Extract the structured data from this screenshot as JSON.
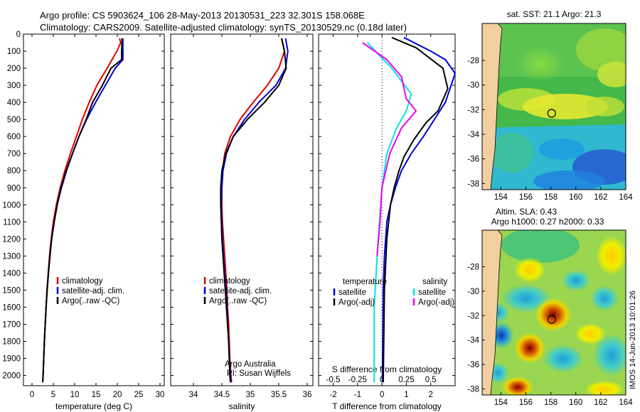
{
  "header": {
    "line1": "Argo profile: CS 5903624_106 28-May-2013 20130531_223 32.301S 158.068E",
    "line2": "Climatology: CARS2009. Satellite-adjusted climatology: synTS_20130529.nc (0.18d later)"
  },
  "colors": {
    "climatology": "#dd0000",
    "satellite": "#0000dd",
    "argo": "#000000",
    "s_satellite": "#00e5e5",
    "s_argo": "#ee00ee",
    "land": "#f2cfa0"
  },
  "chart_data": [
    {
      "type": "line",
      "xlabel": "temperature (deg C)",
      "ylabel": "",
      "xlim": [
        -2,
        31
      ],
      "ylim": [
        2060,
        0
      ],
      "xticks": [
        0,
        5,
        10,
        15,
        20,
        25,
        30
      ],
      "yticks": [
        0,
        100,
        200,
        300,
        400,
        500,
        600,
        700,
        800,
        900,
        1000,
        1100,
        1200,
        1300,
        1400,
        1500,
        1600,
        1700,
        1800,
        1900,
        2000
      ],
      "legend": [
        "climatology",
        "satellite-adj. clim.",
        "Argo(..raw -QC)"
      ],
      "series": [
        {
          "name": "climatology",
          "color": "#dd0000",
          "points": [
            [
              20.5,
              25
            ],
            [
              20.8,
              50
            ],
            [
              19.9,
              100
            ],
            [
              17.6,
              200
            ],
            [
              15.2,
              300
            ],
            [
              13.4,
              400
            ],
            [
              11.8,
              500
            ],
            [
              10.4,
              600
            ],
            [
              9.0,
              700
            ],
            [
              7.7,
              800
            ],
            [
              6.6,
              900
            ],
            [
              5.7,
              1000
            ],
            [
              5.0,
              1100
            ],
            [
              4.5,
              1200
            ],
            [
              4.1,
              1300
            ],
            [
              3.8,
              1400
            ],
            [
              3.5,
              1500
            ],
            [
              3.3,
              1600
            ],
            [
              3.1,
              1700
            ],
            [
              2.9,
              1800
            ],
            [
              2.75,
              1900
            ],
            [
              2.6,
              2000
            ],
            [
              2.5,
              2040
            ]
          ]
        },
        {
          "name": "satellite-adj. clim.",
          "color": "#0000dd",
          "points": [
            [
              21.3,
              25
            ],
            [
              21.3,
              50
            ],
            [
              21.3,
              100
            ],
            [
              21.3,
              150
            ],
            [
              19.5,
              200
            ],
            [
              17.2,
              300
            ],
            [
              14.9,
              400
            ],
            [
              12.8,
              500
            ],
            [
              11.0,
              600
            ],
            [
              9.5,
              700
            ],
            [
              8.1,
              800
            ],
            [
              6.9,
              900
            ],
            [
              5.9,
              1000
            ],
            [
              5.2,
              1100
            ],
            [
              4.6,
              1200
            ],
            [
              4.2,
              1300
            ],
            [
              3.85,
              1400
            ],
            [
              3.55,
              1500
            ],
            [
              3.3,
              1600
            ],
            [
              3.1,
              1700
            ],
            [
              2.9,
              1800
            ],
            [
              2.75,
              1900
            ],
            [
              2.6,
              2000
            ],
            [
              2.5,
              2040
            ]
          ]
        },
        {
          "name": "Argo(..raw -QC)",
          "color": "#000000",
          "points": [
            [
              21.1,
              25
            ],
            [
              21.1,
              50
            ],
            [
              21.0,
              100
            ],
            [
              21.0,
              150
            ],
            [
              18.5,
              200
            ],
            [
              16.5,
              300
            ],
            [
              14.2,
              400
            ],
            [
              12.7,
              500
            ],
            [
              11.0,
              600
            ],
            [
              9.5,
              700
            ],
            [
              8.0,
              800
            ],
            [
              6.8,
              900
            ],
            [
              5.9,
              1000
            ],
            [
              5.2,
              1100
            ],
            [
              4.6,
              1200
            ],
            [
              4.2,
              1300
            ],
            [
              3.85,
              1400
            ],
            [
              3.55,
              1500
            ],
            [
              3.3,
              1600
            ],
            [
              3.1,
              1700
            ],
            [
              2.9,
              1800
            ],
            [
              2.75,
              1900
            ],
            [
              2.6,
              2000
            ],
            [
              2.5,
              2040
            ]
          ]
        }
      ]
    },
    {
      "type": "line",
      "xlabel": "salinity",
      "ylabel": "",
      "xlim": [
        33.6,
        36.1
      ],
      "ylim": [
        2060,
        0
      ],
      "xticks": [
        34,
        34.5,
        35,
        35.5,
        36
      ],
      "legend": [
        "climatology",
        "satellite-adj. clim.",
        "Argo(..raw -QC)"
      ],
      "annotation": [
        "Argo Australia",
        "PI: Susan Wijffels"
      ],
      "series": [
        {
          "name": "climatology",
          "color": "#dd0000",
          "points": [
            [
              35.55,
              25
            ],
            [
              35.6,
              100
            ],
            [
              35.5,
              200
            ],
            [
              35.3,
              300
            ],
            [
              35.05,
              400
            ],
            [
              34.82,
              500
            ],
            [
              34.65,
              600
            ],
            [
              34.55,
              700
            ],
            [
              34.51,
              800
            ],
            [
              34.5,
              900
            ],
            [
              34.5,
              1000
            ],
            [
              34.51,
              1100
            ],
            [
              34.53,
              1200
            ],
            [
              34.55,
              1300
            ],
            [
              34.57,
              1400
            ],
            [
              34.59,
              1500
            ],
            [
              34.6,
              1600
            ],
            [
              34.62,
              1700
            ],
            [
              34.63,
              1800
            ],
            [
              34.64,
              1900
            ],
            [
              34.66,
              2000
            ],
            [
              34.67,
              2040
            ]
          ]
        },
        {
          "name": "satellite-adj. clim.",
          "color": "#0000dd",
          "points": [
            [
              35.62,
              25
            ],
            [
              35.66,
              100
            ],
            [
              35.62,
              200
            ],
            [
              35.45,
              300
            ],
            [
              35.15,
              400
            ],
            [
              34.9,
              500
            ],
            [
              34.7,
              600
            ],
            [
              34.58,
              700
            ],
            [
              34.52,
              800
            ],
            [
              34.5,
              900
            ],
            [
              34.49,
              1000
            ],
            [
              34.5,
              1100
            ],
            [
              34.51,
              1200
            ],
            [
              34.53,
              1300
            ],
            [
              34.55,
              1400
            ],
            [
              34.57,
              1500
            ],
            [
              34.59,
              1600
            ],
            [
              34.6,
              1700
            ],
            [
              34.62,
              1800
            ],
            [
              34.63,
              1900
            ],
            [
              34.65,
              2000
            ],
            [
              34.66,
              2040
            ]
          ]
        },
        {
          "name": "Argo(..raw -QC)",
          "color": "#000000",
          "points": [
            [
              35.55,
              25
            ],
            [
              35.6,
              100
            ],
            [
              35.63,
              200
            ],
            [
              35.5,
              300
            ],
            [
              35.25,
              400
            ],
            [
              34.95,
              500
            ],
            [
              34.7,
              600
            ],
            [
              34.57,
              700
            ],
            [
              34.5,
              800
            ],
            [
              34.48,
              900
            ],
            [
              34.48,
              1000
            ],
            [
              34.49,
              1100
            ],
            [
              34.5,
              1200
            ],
            [
              34.52,
              1300
            ],
            [
              34.54,
              1400
            ],
            [
              34.56,
              1500
            ],
            [
              34.58,
              1600
            ],
            [
              34.6,
              1700
            ],
            [
              34.62,
              1800
            ],
            [
              34.63,
              1900
            ],
            [
              34.64,
              2000
            ],
            [
              34.65,
              2040
            ]
          ]
        }
      ]
    },
    {
      "type": "line",
      "xlabel": "T difference from climatology",
      "xlabel2": "S difference from climatology",
      "xlim": [
        -2.6,
        3.0
      ],
      "ylim": [
        2060,
        0
      ],
      "xticks": [
        -2,
        -1,
        0,
        1,
        2
      ],
      "xticks2": [
        {
          "value": -0.5,
          "label": "-0.5"
        },
        {
          "value": -0.25,
          "label": "-0.25"
        },
        {
          "value": 0,
          "label": "0"
        },
        {
          "value": 0.25,
          "label": "0.25"
        },
        {
          "value": 0.5,
          "label": "0.5"
        }
      ],
      "s_scale": 4,
      "legend_headers": [
        "temperature",
        "salinity"
      ],
      "legend": [
        "satellite",
        "Argo(-adj)",
        "satellite",
        "Argo(-adj)"
      ],
      "series": [
        {
          "name": "temperature satellite",
          "color": "#0000dd",
          "points": [
            [
              0.9,
              20
            ],
            [
              2.0,
              100
            ],
            [
              2.6,
              150
            ],
            [
              3.0,
              230
            ],
            [
              2.6,
              400
            ],
            [
              1.7,
              600
            ],
            [
              1.2,
              700
            ],
            [
              0.8,
              800
            ],
            [
              0.55,
              900
            ],
            [
              0.35,
              1000
            ],
            [
              0.2,
              1100
            ],
            [
              0.1,
              1300
            ],
            [
              0.05,
              1500
            ],
            [
              0.02,
              2040
            ]
          ]
        },
        {
          "name": "temperature Argo(-adj)",
          "color": "#000000",
          "points": [
            [
              0.4,
              20
            ],
            [
              1.4,
              80
            ],
            [
              2.5,
              200
            ],
            [
              2.7,
              320
            ],
            [
              2.3,
              450
            ],
            [
              1.8,
              520
            ],
            [
              1.3,
              620
            ],
            [
              0.9,
              720
            ],
            [
              0.7,
              800
            ],
            [
              0.5,
              900
            ],
            [
              0.35,
              1000
            ],
            [
              0.2,
              1200
            ],
            [
              0.1,
              1500
            ],
            [
              0.05,
              2040
            ]
          ]
        },
        {
          "name": "salinity satellite",
          "color": "#00e5e5",
          "points": [
            [
              -0.15,
              50
            ],
            [
              0.1,
              200
            ],
            [
              0.3,
              350
            ],
            [
              0.25,
              450
            ],
            [
              0.15,
              550
            ],
            [
              0.05,
              700
            ],
            [
              0.0,
              900
            ],
            [
              -0.05,
              1300
            ],
            [
              -0.08,
              1600
            ],
            [
              -0.08,
              2040
            ]
          ]
        },
        {
          "name": "salinity Argo(-adj)",
          "color": "#ee00ee",
          "points": [
            [
              -0.2,
              50
            ],
            [
              0.05,
              150
            ],
            [
              0.2,
              250
            ],
            [
              0.25,
              380
            ],
            [
              0.35,
              450
            ],
            [
              0.2,
              550
            ],
            [
              0.08,
              700
            ],
            [
              0.0,
              900
            ],
            [
              -0.02,
              1100
            ],
            [
              -0.05,
              1300
            ]
          ]
        }
      ]
    }
  ],
  "maps": [
    {
      "title": "sat. SST: 21.1  Argo: 21.3",
      "subtitle": "",
      "xlim": [
        152.5,
        164
      ],
      "ylim": [
        -38.5,
        -25
      ],
      "xticks": [
        154,
        156,
        158,
        160,
        162,
        164
      ],
      "yticks": [
        -28,
        -30,
        -32,
        -34,
        -36,
        -38
      ],
      "argo_position": [
        158.07,
        -32.3
      ]
    },
    {
      "title": "Altim. SLA: 0.43",
      "subtitle": "Argo h1000: 0.27  h2000: 0.33",
      "xlim": [
        152.5,
        164
      ],
      "ylim": [
        -38.5,
        -25
      ],
      "xticks": [
        154,
        156,
        158,
        160,
        162,
        164
      ],
      "yticks": [
        -28,
        -30,
        -32,
        -34,
        -36,
        -38
      ],
      "argo_position": [
        158.07,
        -32.3
      ]
    }
  ],
  "stamp": "IMOS 14-Jun-2013 10:01:26"
}
